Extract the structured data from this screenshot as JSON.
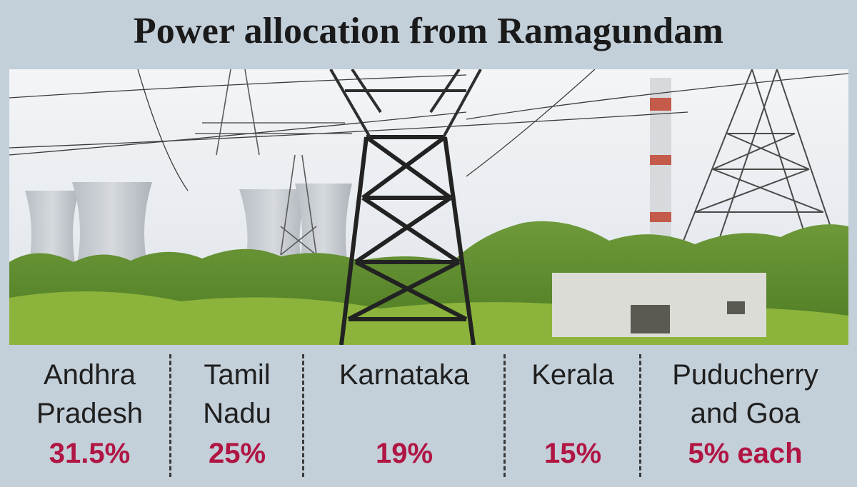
{
  "title": "Power allocation from Ramagundam",
  "chart_data": {
    "type": "table",
    "categories": [
      [
        "Andhra",
        "Pradesh"
      ],
      [
        "Tamil",
        "Nadu"
      ],
      [
        "Karnataka"
      ],
      [
        "Kerala"
      ],
      [
        "Puducherry",
        "and Goa"
      ]
    ],
    "value_labels": [
      "31.5%",
      "25%",
      "19%",
      "15%",
      "5% each"
    ],
    "values": [
      31.5,
      25,
      19,
      15,
      5
    ],
    "unit": "%"
  },
  "colors": {
    "background": "#c3cfd9",
    "value_text": "#b01543",
    "label_text": "#1f1f1f"
  }
}
